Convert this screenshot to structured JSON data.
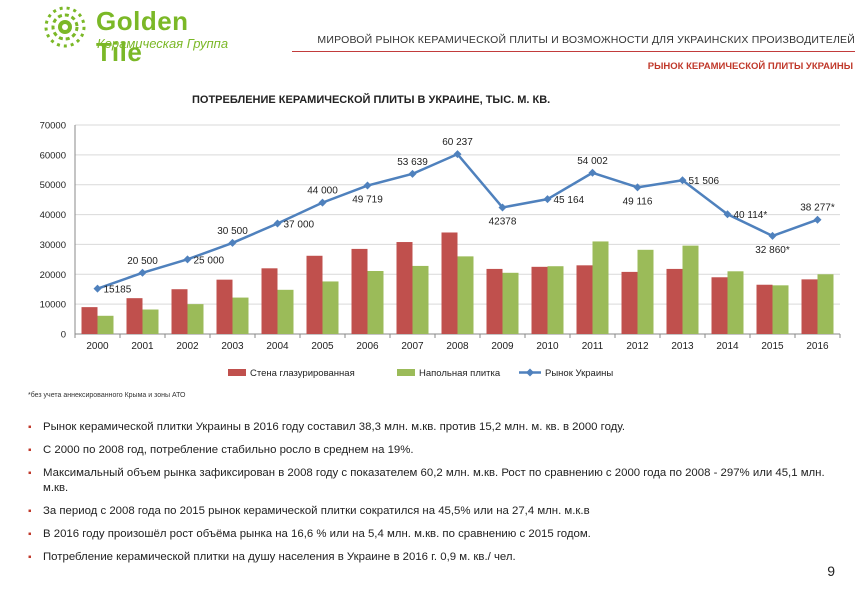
{
  "logo": {
    "name": "Golden Tile",
    "subtitle": "Керамическая Группа"
  },
  "header": {
    "title": "МИРОВОЙ РЫНОК КЕРАМИЧЕСКОЙ ПЛИТЫ И ВОЗМОЖНОСТИ ДЛЯ УКРАИНСКИХ ПРОИЗВОДИТЕЛЕЙ",
    "subtitle": "РЫНОК КЕРАМИЧЕСКОЙ ПЛИТЫ УКРАИНЫ"
  },
  "colors": {
    "wall": "#c0504d",
    "floor": "#9bbb59",
    "market": "#4f81bd",
    "accent": "#c0392b",
    "brand": "#7bb827"
  },
  "chart_data": {
    "type": "bar",
    "title": "ПОТРЕБЛЕНИЕ КЕРАМИЧЕСКОЙ ПЛИТЫ В УКРАИНЕ, ТЫС. М. КВ.",
    "categories": [
      "2000",
      "2001",
      "2002",
      "2003",
      "2004",
      "2005",
      "2006",
      "2007",
      "2008",
      "2009",
      "2010",
      "2011",
      "2012",
      "2013",
      "2014",
      "2015",
      "2016"
    ],
    "y_ticks": [
      "0",
      "10000",
      "20000",
      "30000",
      "40000",
      "50000",
      "60000",
      "70000"
    ],
    "ylim": [
      0,
      70000
    ],
    "grid": true,
    "legend_position": "bottom",
    "series": [
      {
        "name": "Стена глазурированная",
        "kind": "bar",
        "values": [
          9000,
          12000,
          15000,
          18200,
          22000,
          26200,
          28500,
          30800,
          34000,
          21800,
          22500,
          23000,
          20800,
          21800,
          19000,
          16500,
          18300
        ]
      },
      {
        "name": "Напольная плитка",
        "kind": "bar",
        "values": [
          6100,
          8200,
          10000,
          12200,
          14800,
          17600,
          21100,
          22800,
          26000,
          20500,
          22700,
          31000,
          28200,
          29600,
          21000,
          16300,
          20000
        ]
      },
      {
        "name": "Рынок Украины",
        "kind": "line",
        "values": [
          15185,
          20500,
          25000,
          30500,
          37000,
          44000,
          49719,
          53639,
          60237,
          42378,
          45164,
          54002,
          49116,
          51506,
          40114,
          32860,
          38277
        ],
        "labels": [
          "15185",
          "20 500",
          "25 000",
          "30 500",
          "37 000",
          "44 000",
          "49 719",
          "53 639",
          "60 237",
          "42378",
          "45 164",
          "54 002",
          "49 116",
          "51 506",
          "40 114*",
          "32 860*",
          "38 277*"
        ],
        "label_pos": [
          "right",
          "above",
          "right",
          "above",
          "right",
          "above",
          "below",
          "above",
          "above",
          "below",
          "right",
          "above",
          "below",
          "right",
          "right",
          "below",
          "above"
        ]
      }
    ]
  },
  "footnote": "*без учета аннексированного Крыма и зоны АТО",
  "bullets": [
    "Рынок керамической плитки Украины в 2016 году составил 38,3 млн. м.кв. против 15,2 млн. м. кв. в 2000 году.",
    "С 2000 по 2008 год, потребление стабильно росло в среднем на 19%.",
    "Максимальный объем рынка зафиксирован в 2008 году с показателем 60,2 млн. м.кв. Рост по сравнению с 2000 года по 2008 - 297% или 45,1 млн. м.кв.",
    "За период с 2008 года по 2015 рынок керамической плитки сократился на 45,5% или на 27,4 млн. м.к.в",
    "В 2016 году произошёл рост объёма рынка на 16,6 % или на 5,4 млн. м.кв. по сравнению с 2015 годом.",
    "Потребление керамической плитки на душу населения в Украине в 2016 г. 0,9 м. кв./ чел."
  ],
  "page_number": "9"
}
